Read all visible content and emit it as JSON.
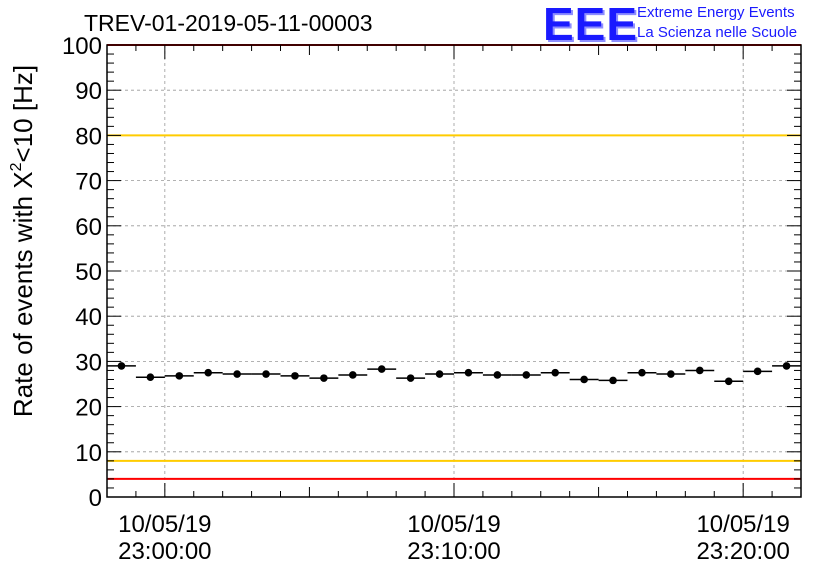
{
  "title": "TREV-01-2019-05-11-00003",
  "logo": {
    "mark": "EEE",
    "line1": "Extreme Energy Events",
    "line2": "La Scienza nelle Scuole",
    "color": "#1a1aff"
  },
  "chart_data": {
    "type": "scatter",
    "title": "TREV-01-2019-05-11-00003",
    "ylabel": "Rate of events with X²<10 [Hz]",
    "ylabel_base": "Rate of events with X",
    "ylabel_sup": "2",
    "ylabel_tail": "<10 [Hz]",
    "ylim": [
      0,
      100
    ],
    "y_ticks": [
      "0",
      "10",
      "20",
      "30",
      "40",
      "50",
      "60",
      "70",
      "80",
      "90",
      "100"
    ],
    "xlim_minutes": [
      -2.0,
      22.0
    ],
    "x_ticks": [
      {
        "minute": 0,
        "date": "10/05/19",
        "time": "23:00:00"
      },
      {
        "minute": 10,
        "date": "10/05/19",
        "time": "23:10:00"
      },
      {
        "minute": 20,
        "date": "10/05/19",
        "time": "23:20:00"
      }
    ],
    "grid": true,
    "reference_lines": [
      {
        "y": 100,
        "color": "#ff0000"
      },
      {
        "y": 80,
        "color": "#ffcc00"
      },
      {
        "y": 8,
        "color": "#ffcc00"
      },
      {
        "y": 4,
        "color": "#ff0000"
      }
    ],
    "series": [
      {
        "x_minutes": [
          -1.5,
          -0.5,
          0.5,
          1.5,
          2.5,
          3.5,
          4.5,
          5.5,
          6.5,
          7.5,
          8.5,
          9.5,
          10.5,
          11.5,
          12.5,
          13.5,
          14.5,
          15.5,
          16.5,
          17.5,
          18.5,
          19.5,
          20.5,
          21.5
        ],
        "values": [
          29.0,
          26.5,
          26.8,
          27.5,
          27.2,
          27.2,
          26.8,
          26.3,
          27.0,
          28.3,
          26.3,
          27.2,
          27.5,
          27.0,
          27.0,
          27.5,
          26.0,
          25.8,
          27.5,
          27.2,
          28.0,
          25.6,
          27.8,
          29.0
        ],
        "color": "#000000"
      }
    ]
  }
}
